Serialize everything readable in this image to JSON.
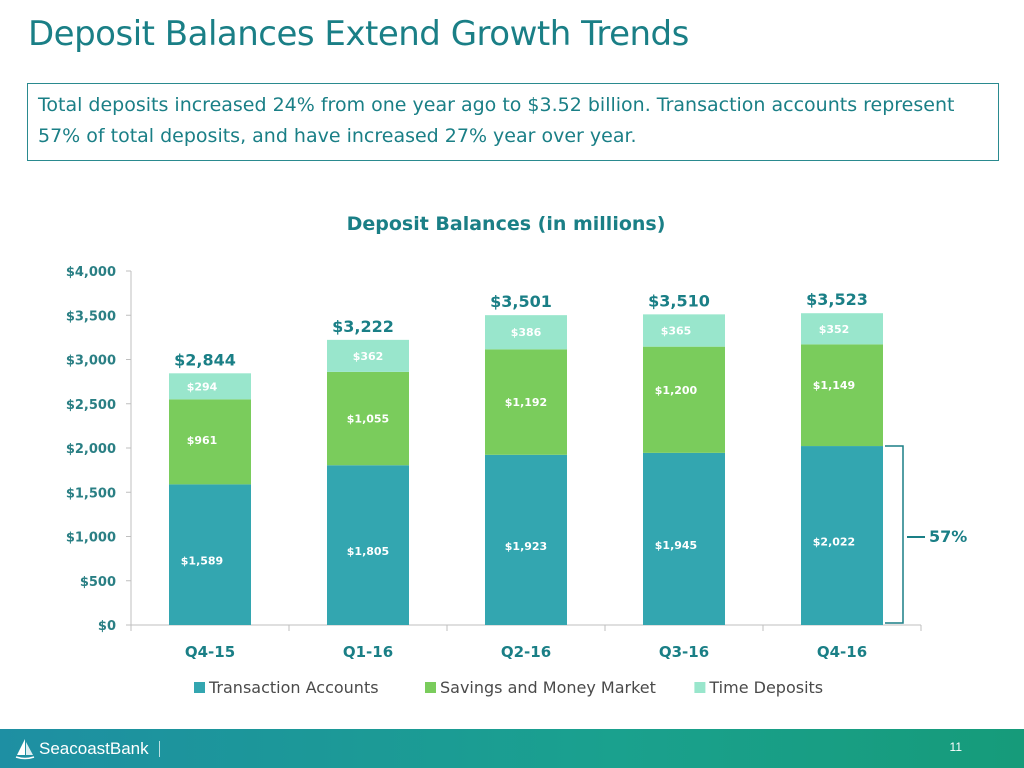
{
  "slide": {
    "title": "Deposit Balances Extend Growth Trends",
    "summary": "Total deposits increased 24% from one year ago to $3.52 billion.  Transaction accounts represent 57% of total deposits, and have increased 27% year over year.",
    "page_number": "11",
    "brand": "SeacoastBank"
  },
  "colors": {
    "transaction": "#33a6b0",
    "savings": "#7acc5c",
    "time": "#99e6cc",
    "title": "#1a7f86",
    "axis_text": "#2a7f84"
  },
  "chart_data": {
    "type": "bar",
    "stacked": true,
    "title": "Deposit Balances (in millions)",
    "categories": [
      "Q4-15",
      "Q1-16",
      "Q2-16",
      "Q3-16",
      "Q4-16"
    ],
    "series": [
      {
        "name": "Transaction Accounts",
        "values": [
          1589,
          1805,
          1923,
          1945,
          2022
        ],
        "labels": [
          "$1,589",
          "$1,805",
          "$1,923",
          "$1,945",
          "$2,022"
        ]
      },
      {
        "name": "Savings and Money Market",
        "values": [
          961,
          1055,
          1192,
          1200,
          1149
        ],
        "labels": [
          "$961",
          "$1,055",
          "$1,192",
          "$1,200",
          "$1,149"
        ]
      },
      {
        "name": "Time Deposits",
        "values": [
          294,
          362,
          386,
          365,
          352
        ],
        "labels": [
          "$294",
          "$362",
          "$386",
          "$365",
          "$352"
        ]
      }
    ],
    "totals": [
      "$2,844",
      "$3,222",
      "$3,501",
      "$3,510",
      "$3,523"
    ],
    "ylim": [
      0,
      4000
    ],
    "yticks": [
      0,
      500,
      1000,
      1500,
      2000,
      2500,
      3000,
      3500,
      4000
    ],
    "ytick_labels": [
      "$0",
      "$500",
      "$1,000",
      "$1,500",
      "$2,000",
      "$2,500",
      "$3,000",
      "$3,500",
      "$4,000"
    ],
    "annotation": {
      "text": "57%",
      "category": "Q4-16",
      "series": "Transaction Accounts"
    },
    "legend_position": "bottom",
    "grid": false
  }
}
